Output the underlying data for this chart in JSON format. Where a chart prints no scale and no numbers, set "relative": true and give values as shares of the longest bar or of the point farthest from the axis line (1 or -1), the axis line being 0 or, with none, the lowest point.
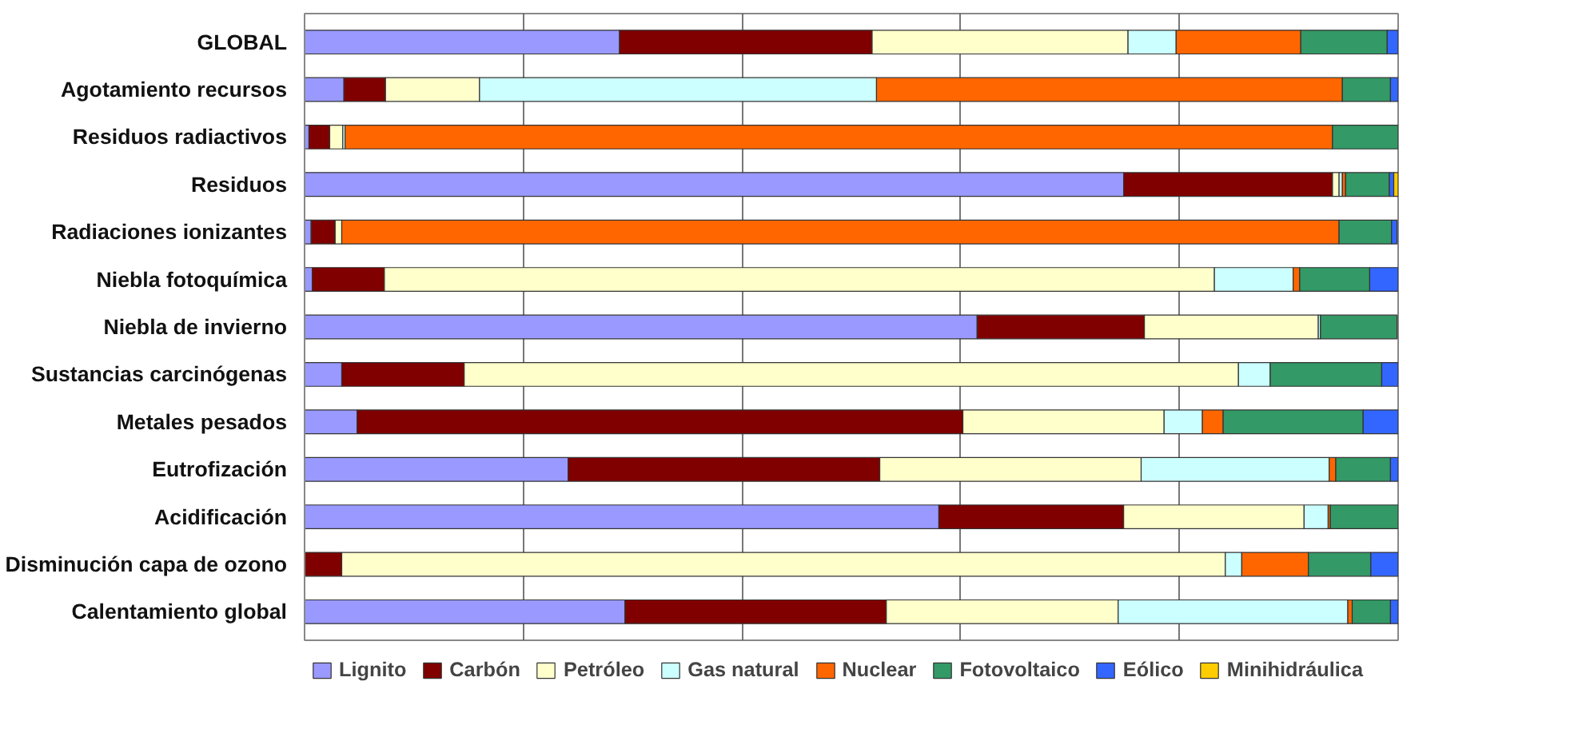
{
  "chart_data": {
    "type": "bar",
    "orientation": "horizontal",
    "stacked": true,
    "relative": true,
    "grid": "x",
    "legend": "bottom",
    "categories": [
      "GLOBAL",
      "Agotamiento recursos",
      "Residuos radiactivos",
      "Residuos",
      "Radiaciones ionizantes",
      "Niebla fotoquímica",
      "Niebla de invierno",
      "Sustancias carcinógenas",
      "Metales pesados",
      "Eutrofización",
      "Acidificación",
      "Disminución capa de ozono",
      "Calentamiento global"
    ],
    "series": [
      {
        "name": "Lignito",
        "color": "#9999ff",
        "values": [
          0.288,
          0.036,
          0.004,
          0.749,
          0.006,
          0.007,
          0.615,
          0.034,
          0.048,
          0.241,
          0.58,
          0,
          0.293
        ]
      },
      {
        "name": "Carbón",
        "color": "#800000",
        "values": [
          0.231,
          0.038,
          0.019,
          0.191,
          0.022,
          0.066,
          0.153,
          0.112,
          0.554,
          0.285,
          0.169,
          0.034,
          0.239
        ]
      },
      {
        "name": "Petróleo",
        "color": "#ffffcc",
        "values": [
          0.234,
          0.086,
          0.012,
          0.006,
          0.006,
          0.759,
          0.159,
          0.708,
          0.184,
          0.239,
          0.165,
          0.808,
          0.212
        ]
      },
      {
        "name": "Gas natural",
        "color": "#ccffff",
        "values": [
          0.044,
          0.363,
          0.002,
          0.003,
          null,
          0.072,
          0.002,
          0.029,
          0.035,
          0.172,
          0.022,
          0.015,
          0.21
        ]
      },
      {
        "name": "Nuclear",
        "color": "#ff6600",
        "values": [
          0.114,
          0.426,
          0.903,
          0.003,
          0.912,
          0.006,
          null,
          0,
          0.019,
          0.006,
          0.002,
          0.061,
          0.004
        ]
      },
      {
        "name": "Fotovoltaico",
        "color": "#339966",
        "values": [
          0.079,
          0.044,
          0.06,
          0.04,
          0.048,
          0.064,
          0.07,
          0.102,
          0.128,
          0.05,
          0.062,
          0.057,
          0.035
        ]
      },
      {
        "name": "Eólico",
        "color": "#3366ff",
        "values": [
          0.01,
          0.007,
          0,
          0.004,
          0.005,
          0.026,
          0,
          0.015,
          0.032,
          0.007,
          0,
          0.025,
          0.007
        ]
      },
      {
        "name": "Minihidráulica",
        "color": "#ffcc00",
        "values": [
          0,
          0,
          0,
          0.004,
          0,
          0,
          0,
          0,
          0,
          0,
          0,
          0,
          0
        ]
      }
    ]
  }
}
